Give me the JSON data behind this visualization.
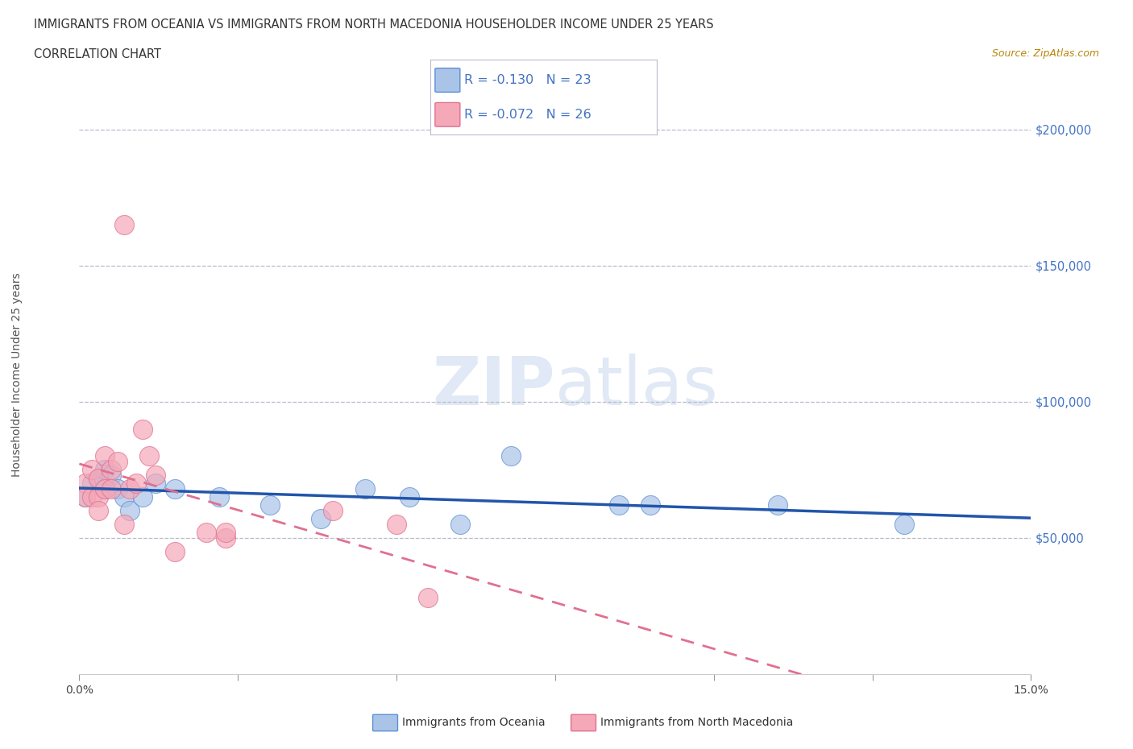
{
  "title_line1": "IMMIGRANTS FROM OCEANIA VS IMMIGRANTS FROM NORTH MACEDONIA HOUSEHOLDER INCOME UNDER 25 YEARS",
  "title_line2": "CORRELATION CHART",
  "source": "Source: ZipAtlas.com",
  "ylabel": "Householder Income Under 25 years",
  "xlim": [
    0.0,
    0.15
  ],
  "ylim": [
    0,
    220000
  ],
  "xticks": [
    0.0,
    0.025,
    0.05,
    0.075,
    0.1,
    0.125,
    0.15
  ],
  "xticklabels": [
    "0.0%",
    "",
    "",
    "",
    "",
    "",
    "15.0%"
  ],
  "ytick_positions": [
    50000,
    100000,
    150000,
    200000
  ],
  "ytick_labels": [
    "$50,000",
    "$100,000",
    "$150,000",
    "$200,000"
  ],
  "watermark": "ZIPatlas",
  "oceania_color": "#aac4e8",
  "north_macedonia_color": "#f4a8b8",
  "oceania_edge_color": "#5b8fd4",
  "north_macedonia_edge_color": "#e07090",
  "oceania_line_color": "#2255aa",
  "north_macedonia_line_color": "#e07090",
  "oceania_R": -0.13,
  "oceania_N": 23,
  "north_macedonia_R": -0.072,
  "north_macedonia_N": 26,
  "oceania_x": [
    0.001,
    0.002,
    0.003,
    0.004,
    0.004,
    0.005,
    0.006,
    0.007,
    0.008,
    0.01,
    0.012,
    0.015,
    0.022,
    0.03,
    0.038,
    0.045,
    0.052,
    0.06,
    0.068,
    0.085,
    0.09,
    0.11,
    0.13
  ],
  "oceania_y": [
    65000,
    70000,
    72000,
    68000,
    75000,
    73000,
    68000,
    65000,
    60000,
    65000,
    70000,
    68000,
    65000,
    62000,
    57000,
    68000,
    65000,
    55000,
    80000,
    62000,
    62000,
    62000,
    55000
  ],
  "north_macedonia_x": [
    0.001,
    0.001,
    0.002,
    0.002,
    0.003,
    0.003,
    0.003,
    0.004,
    0.004,
    0.005,
    0.005,
    0.006,
    0.007,
    0.007,
    0.008,
    0.009,
    0.01,
    0.011,
    0.012,
    0.015,
    0.02,
    0.023,
    0.023,
    0.04,
    0.05,
    0.055
  ],
  "north_macedonia_y": [
    70000,
    65000,
    75000,
    65000,
    72000,
    65000,
    60000,
    80000,
    68000,
    75000,
    68000,
    78000,
    55000,
    165000,
    68000,
    70000,
    90000,
    80000,
    73000,
    45000,
    52000,
    50000,
    52000,
    60000,
    55000,
    28000
  ],
  "hline_positions": [
    50000,
    100000,
    150000,
    200000
  ],
  "bg_color": "#ffffff",
  "title_color": "#333333",
  "grid_color": "#cccccc"
}
